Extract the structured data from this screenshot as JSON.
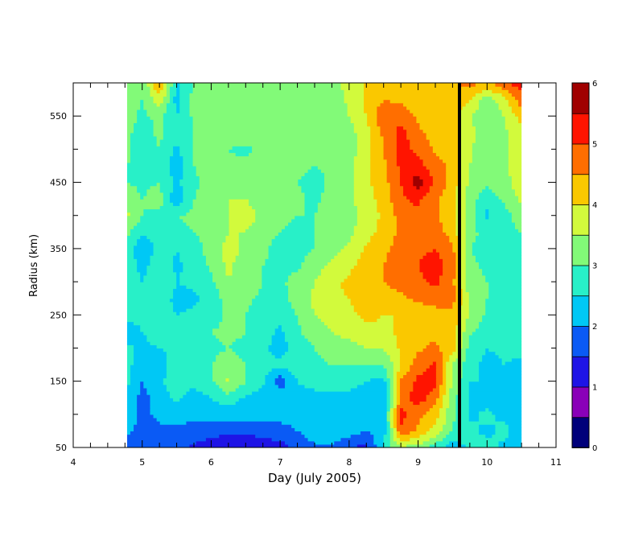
{
  "chart_data": {
    "type": "heatmap",
    "title": "",
    "xlabel": "Day (July 2005)",
    "ylabel": "Radius (km)",
    "xlim": [
      4,
      11
    ],
    "ylim": [
      50,
      600
    ],
    "x_ticks": [
      4,
      5,
      6,
      7,
      8,
      9,
      10,
      11
    ],
    "y_ticks": [
      50,
      150,
      250,
      350,
      450,
      550
    ],
    "data_x_range": [
      4.78,
      10.5
    ],
    "colorbar": {
      "min": 0,
      "max": 6,
      "step": 0.5,
      "tick_labels": [
        0,
        1,
        2,
        3,
        4,
        5,
        6
      ],
      "colors": [
        "#00007a",
        "#8a00b8",
        "#1e14e6",
        "#0a5af5",
        "#00c8f5",
        "#28f0c8",
        "#82fa78",
        "#d2fa3c",
        "#fac800",
        "#ff6e00",
        "#ff1400",
        "#a00000"
      ]
    },
    "marker_line": {
      "x": 9.6,
      "color": "#000000"
    },
    "x": [
      4.78,
      5.0,
      5.25,
      5.5,
      5.75,
      6.0,
      6.25,
      6.5,
      6.75,
      7.0,
      7.25,
      7.5,
      7.75,
      8.0,
      8.25,
      8.5,
      8.75,
      9.0,
      9.25,
      9.5,
      9.75,
      10.0,
      10.25,
      10.5
    ],
    "y": [
      50,
      75,
      100,
      125,
      150,
      175,
      200,
      225,
      250,
      275,
      300,
      325,
      350,
      375,
      400,
      425,
      450,
      475,
      500,
      525,
      550,
      575,
      600
    ],
    "z": [
      [
        1.8,
        2.0,
        1.9,
        1.6,
        1.4,
        1.2,
        1.1,
        1.1,
        1.2,
        1.3,
        1.6,
        1.9,
        1.9,
        1.6,
        1.3,
        2.6,
        3.4,
        3.3,
        2.7,
        2.2,
        2.6,
        2.7,
        2.4,
        2.2
      ],
      [
        2.1,
        1.8,
        1.9,
        1.9,
        1.8,
        1.7,
        1.6,
        1.6,
        1.7,
        1.8,
        2.0,
        2.3,
        2.3,
        2.2,
        2.0,
        2.2,
        4.9,
        4.4,
        3.8,
        3.0,
        2.6,
        2.4,
        2.6,
        2.3
      ],
      [
        2.3,
        1.9,
        2.1,
        2.2,
        2.1,
        2.2,
        2.2,
        2.2,
        2.2,
        2.2,
        2.2,
        2.3,
        2.3,
        2.3,
        2.3,
        2.2,
        5.2,
        4.6,
        4.2,
        3.1,
        2.4,
        2.6,
        2.4,
        2.2
      ],
      [
        2.4,
        1.8,
        2.3,
        2.6,
        2.3,
        2.5,
        2.8,
        2.4,
        2.2,
        2.3,
        2.4,
        2.4,
        2.4,
        2.4,
        2.3,
        2.1,
        4.7,
        5.3,
        4.7,
        3.2,
        2.4,
        2.3,
        2.2,
        2.2
      ],
      [
        2.6,
        2.0,
        2.5,
        2.6,
        2.6,
        2.9,
        3.6,
        3.0,
        2.6,
        1.7,
        2.5,
        2.6,
        2.7,
        2.6,
        2.5,
        2.3,
        4.6,
        5.1,
        5.2,
        3.4,
        2.5,
        2.5,
        2.5,
        2.4
      ],
      [
        2.7,
        2.1,
        2.3,
        2.7,
        2.8,
        3.0,
        3.2,
        3.0,
        2.7,
        2.6,
        2.8,
        2.9,
        3.0,
        3.0,
        3.0,
        3.0,
        4.0,
        4.8,
        5.1,
        3.5,
        2.7,
        2.3,
        2.5,
        2.4
      ],
      [
        2.6,
        2.4,
        2.5,
        2.6,
        2.8,
        2.9,
        3.0,
        2.9,
        2.6,
        2.3,
        2.7,
        3.0,
        3.2,
        3.3,
        3.5,
        3.5,
        4.1,
        4.4,
        4.6,
        4.2,
        2.8,
        2.5,
        2.6,
        2.6
      ],
      [
        2.2,
        2.5,
        2.7,
        2.8,
        2.9,
        3.0,
        3.1,
        3.0,
        2.7,
        2.4,
        2.9,
        3.3,
        3.5,
        3.7,
        3.9,
        3.9,
        4.1,
        4.4,
        4.4,
        4.3,
        3.1,
        2.7,
        2.7,
        2.8
      ],
      [
        2.7,
        2.6,
        2.8,
        2.5,
        2.6,
        2.8,
        3.1,
        3.0,
        2.8,
        2.7,
        3.0,
        3.5,
        3.7,
        3.9,
        4.1,
        4.0,
        4.0,
        4.1,
        4.2,
        4.3,
        3.4,
        2.9,
        2.9,
        3.0
      ],
      [
        2.8,
        2.7,
        2.9,
        2.3,
        2.4,
        2.7,
        3.2,
        3.1,
        2.9,
        2.8,
        3.2,
        3.6,
        3.9,
        4.0,
        4.2,
        4.2,
        4.4,
        4.6,
        4.8,
        4.7,
        3.4,
        3.0,
        3.0,
        3.0
      ],
      [
        2.9,
        2.5,
        3.0,
        2.5,
        2.6,
        2.9,
        3.5,
        3.3,
        3.0,
        2.9,
        3.2,
        3.5,
        3.9,
        4.1,
        4.3,
        4.5,
        4.7,
        4.9,
        5.1,
        4.6,
        3.2,
        3.0,
        2.9,
        2.8
      ],
      [
        2.9,
        2.3,
        2.9,
        2.4,
        2.7,
        3.1,
        3.6,
        3.2,
        3.0,
        2.9,
        2.9,
        3.3,
        3.6,
        3.9,
        4.2,
        4.5,
        4.8,
        5.0,
        5.2,
        4.8,
        3.1,
        2.9,
        2.8,
        2.7
      ],
      [
        2.8,
        2.0,
        2.8,
        2.5,
        2.8,
        3.2,
        3.7,
        3.4,
        3.1,
        2.8,
        2.8,
        3.0,
        3.3,
        3.6,
        4.1,
        4.4,
        4.7,
        4.9,
        5.0,
        4.6,
        3.0,
        2.9,
        2.8,
        2.8
      ],
      [
        3.1,
        2.6,
        2.6,
        2.9,
        3.0,
        3.1,
        3.5,
        3.5,
        3.2,
        3.0,
        2.8,
        3.0,
        3.2,
        3.4,
        3.8,
        4.2,
        4.6,
        4.8,
        4.7,
        4.3,
        3.1,
        2.9,
        2.8,
        3.0
      ],
      [
        3.6,
        3.0,
        2.9,
        3.0,
        3.1,
        3.2,
        3.5,
        3.7,
        3.4,
        3.2,
        3.0,
        3.0,
        3.2,
        3.3,
        3.7,
        4.1,
        4.7,
        4.9,
        4.6,
        4.1,
        3.2,
        2.4,
        2.8,
        3.3
      ],
      [
        3.3,
        3.0,
        3.2,
        2.1,
        3.0,
        3.2,
        3.5,
        3.5,
        3.3,
        3.2,
        3.1,
        2.9,
        3.2,
        3.4,
        3.8,
        4.2,
        4.9,
        5.1,
        4.6,
        4.1,
        3.2,
        2.7,
        3.1,
        3.6
      ],
      [
        3.0,
        2.9,
        3.0,
        2.4,
        2.9,
        3.2,
        3.3,
        3.2,
        3.2,
        3.1,
        3.0,
        2.8,
        3.1,
        3.4,
        3.9,
        4.3,
        5.0,
        5.8,
        4.9,
        4.3,
        3.4,
        3.1,
        3.3,
        3.8
      ],
      [
        3.0,
        2.8,
        2.9,
        2.2,
        3.0,
        3.3,
        3.1,
        3.1,
        3.2,
        3.1,
        3.1,
        3.0,
        3.1,
        3.3,
        3.9,
        4.4,
        5.1,
        5.2,
        4.7,
        4.4,
        3.5,
        3.2,
        3.4,
        3.9
      ],
      [
        3.1,
        2.7,
        3.0,
        2.4,
        3.0,
        3.2,
        3.0,
        2.9,
        3.1,
        3.1,
        3.1,
        3.0,
        3.1,
        3.3,
        3.8,
        4.5,
        5.2,
        4.9,
        4.4,
        4.3,
        3.6,
        3.1,
        3.3,
        3.9
      ],
      [
        3.1,
        2.8,
        3.1,
        2.6,
        3.0,
        3.3,
        3.3,
        3.2,
        3.2,
        3.1,
        3.1,
        3.1,
        3.1,
        3.3,
        3.8,
        4.6,
        5.2,
        4.6,
        4.3,
        4.2,
        3.7,
        3.0,
        3.4,
        3.9
      ],
      [
        3.2,
        2.9,
        3.1,
        2.5,
        3.1,
        3.2,
        3.2,
        3.3,
        3.2,
        3.1,
        3.1,
        3.1,
        3.1,
        3.5,
        4.0,
        4.9,
        4.8,
        4.4,
        4.2,
        4.2,
        3.6,
        3.0,
        3.5,
        4.2
      ],
      [
        3.2,
        3.0,
        3.8,
        2.3,
        3.2,
        3.1,
        3.1,
        3.1,
        3.1,
        3.1,
        3.1,
        3.1,
        3.2,
        3.6,
        4.1,
        4.5,
        4.4,
        4.2,
        4.0,
        4.3,
        4.0,
        3.2,
        3.8,
        4.8
      ],
      [
        3.2,
        3.0,
        4.6,
        2.4,
        3.0,
        3.1,
        3.0,
        3.0,
        3.1,
        3.1,
        3.1,
        3.2,
        3.3,
        3.7,
        4.1,
        4.3,
        4.2,
        4.1,
        4.0,
        4.4,
        4.7,
        4.4,
        4.9,
        5.3
      ]
    ]
  }
}
